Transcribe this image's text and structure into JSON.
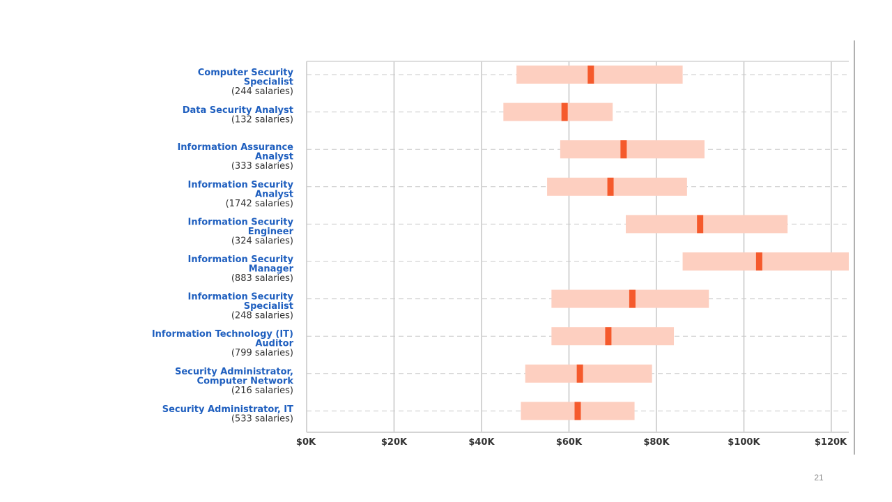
{
  "page_number": "21",
  "colors": {
    "range_fill": "#fdcfc0",
    "median_marker": "#f55a2c",
    "label_title": "#1f5fbf",
    "label_count": "#333333",
    "grid": "#d4d4d4",
    "row_line": "#c8c8c8"
  },
  "chart_data": {
    "type": "range-bar",
    "title": "",
    "xlabel": "",
    "ylabel": "",
    "x_ticks": [
      "$0K",
      "$20K",
      "$40K",
      "$60K",
      "$80K",
      "$100K",
      "$120K"
    ],
    "x_tick_values": [
      0,
      20000,
      40000,
      60000,
      80000,
      100000,
      120000
    ],
    "xlim": [
      0,
      124000
    ],
    "grid": true,
    "rows": [
      {
        "title_lines": [
          "Computer Security",
          "Specialist"
        ],
        "count_label": "(244 salaries)",
        "low": 48000,
        "high": 86000,
        "median": 65000
      },
      {
        "title_lines": [
          "Data Security Analyst"
        ],
        "count_label": "(132 salaries)",
        "low": 45000,
        "high": 70000,
        "median": 59000
      },
      {
        "title_lines": [
          "Information Assurance",
          "Analyst"
        ],
        "count_label": "(333 salaries)",
        "low": 58000,
        "high": 91000,
        "median": 72500
      },
      {
        "title_lines": [
          "Information Security",
          "Analyst"
        ],
        "count_label": "(1742 salaries)",
        "low": 55000,
        "high": 87000,
        "median": 69500
      },
      {
        "title_lines": [
          "Information Security",
          "Engineer"
        ],
        "count_label": "(324 salaries)",
        "low": 73000,
        "high": 110000,
        "median": 90000
      },
      {
        "title_lines": [
          "Information Security",
          "Manager"
        ],
        "count_label": "(883 salaries)",
        "low": 86000,
        "high": 124000,
        "median": 103500
      },
      {
        "title_lines": [
          "Information Security",
          "Specialist"
        ],
        "count_label": "(248 salaries)",
        "low": 56000,
        "high": 92000,
        "median": 74500
      },
      {
        "title_lines": [
          "Information Technology (IT)",
          "Auditor"
        ],
        "count_label": "(799 salaries)",
        "low": 56000,
        "high": 84000,
        "median": 69000
      },
      {
        "title_lines": [
          "Security Administrator,",
          "Computer Network"
        ],
        "count_label": "(216 salaries)",
        "low": 50000,
        "high": 79000,
        "median": 62500
      },
      {
        "title_lines": [
          "Security Administrator, IT"
        ],
        "count_label": "(533 salaries)",
        "low": 49000,
        "high": 75000,
        "median": 62000
      }
    ]
  }
}
